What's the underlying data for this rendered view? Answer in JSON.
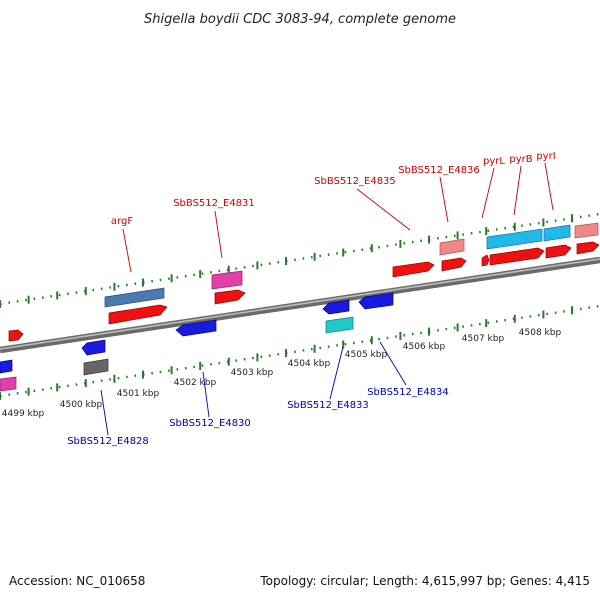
{
  "title": "Shigella boydii CDC 3083-94, complete genome",
  "footer": {
    "accession": "Accession: NC_010658",
    "summary": "Topology: circular; Length: 4,615,997 bp; Genes: 4,415"
  },
  "axis_labels": [
    "4499 kbp",
    "4500 kbp",
    "4501 kbp",
    "4502 kbp",
    "4503 kbp",
    "4504 kbp",
    "4505 kbp",
    "4506 kbp",
    "4507 kbp",
    "4508 kbp"
  ],
  "forward_labels": [
    "argF",
    "SbBS512_E4831",
    "SbBS512_E4835",
    "SbBS512_E4836",
    "pyrL",
    "pyrB",
    "pyrI"
  ],
  "reverse_labels": [
    "SbBS512_E4828",
    "SbBS512_E4830",
    "SbBS512_E4833",
    "SbBS512_E4834"
  ],
  "colors": {
    "forward_label": "#cc0000",
    "reverse_label": "#0000aa",
    "backbone": "#888888",
    "tick": "#2a7a2a"
  }
}
